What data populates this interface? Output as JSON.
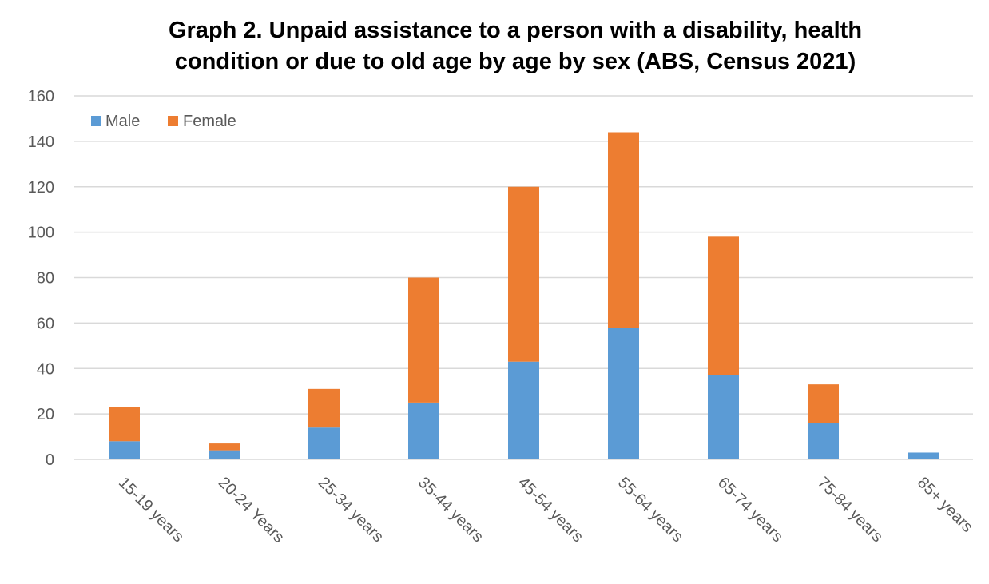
{
  "chart_data": {
    "type": "bar",
    "stacked": true,
    "title": "Graph 2. Unpaid assistance to a person with a disability, health condition or due to old age by age by sex (ABS, Census 2021)",
    "title_lines": [
      "Graph 2. Unpaid assistance to a person with a disability, health",
      "condition or due to old age by age by sex (ABS, Census 2021)"
    ],
    "categories": [
      "15-19 years",
      "20-24 Years",
      "25-34 years",
      "35-44 years",
      "45-54 years",
      "55-64 years",
      "65-74 years",
      "75-84 years",
      "85+ years"
    ],
    "series": [
      {
        "name": "Male",
        "color": "#5B9BD5",
        "values": [
          8,
          4,
          14,
          25,
          43,
          58,
          37,
          16,
          3
        ]
      },
      {
        "name": "Female",
        "color": "#ED7D31",
        "values": [
          15,
          3,
          17,
          55,
          77,
          86,
          61,
          17,
          0
        ]
      }
    ],
    "xlabel": "",
    "ylabel": "",
    "ylim": [
      0,
      160
    ],
    "yticks": [
      0,
      20,
      40,
      60,
      80,
      100,
      120,
      140,
      160
    ],
    "grid": true,
    "legend_position": "top-left",
    "gridline_color": "#D9D9D9"
  }
}
